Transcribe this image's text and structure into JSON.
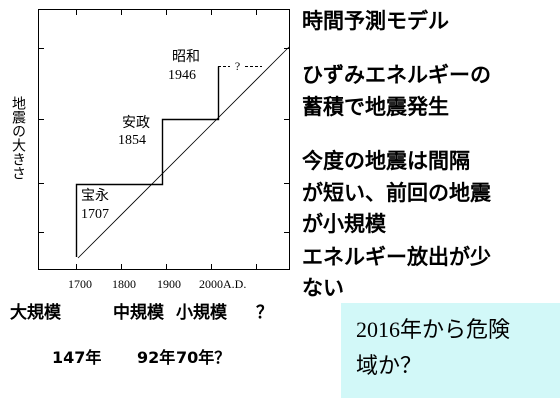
{
  "diagram": {
    "y_axis_label": "地震の大きさ",
    "x_ticks": [
      "1700",
      "1800",
      "1900",
      "2000A.D."
    ],
    "events": [
      {
        "era": "宝永",
        "year": "1707"
      },
      {
        "era": "安政",
        "year": "1854"
      },
      {
        "era": "昭和",
        "year": "1946"
      }
    ],
    "next_event_mark": "?"
  },
  "notes": {
    "heading": "時間予測モデル",
    "lines": [
      "ひずみエネルギーの",
      "蓄積で地震発生",
      "今度の地震は間隔",
      "が短い、前回の地震",
      "が小規模",
      "エネルギー放出が少",
      "ない"
    ]
  },
  "magnitude_row": {
    "labels": [
      "大規模",
      "中規模",
      "小規模",
      "？"
    ]
  },
  "interval_row": {
    "labels": [
      "147年",
      "92年",
      "70年？"
    ]
  },
  "callout": {
    "lines": [
      "2016年から危険",
      "域か？"
    ],
    "background": "#d2f8f8"
  }
}
